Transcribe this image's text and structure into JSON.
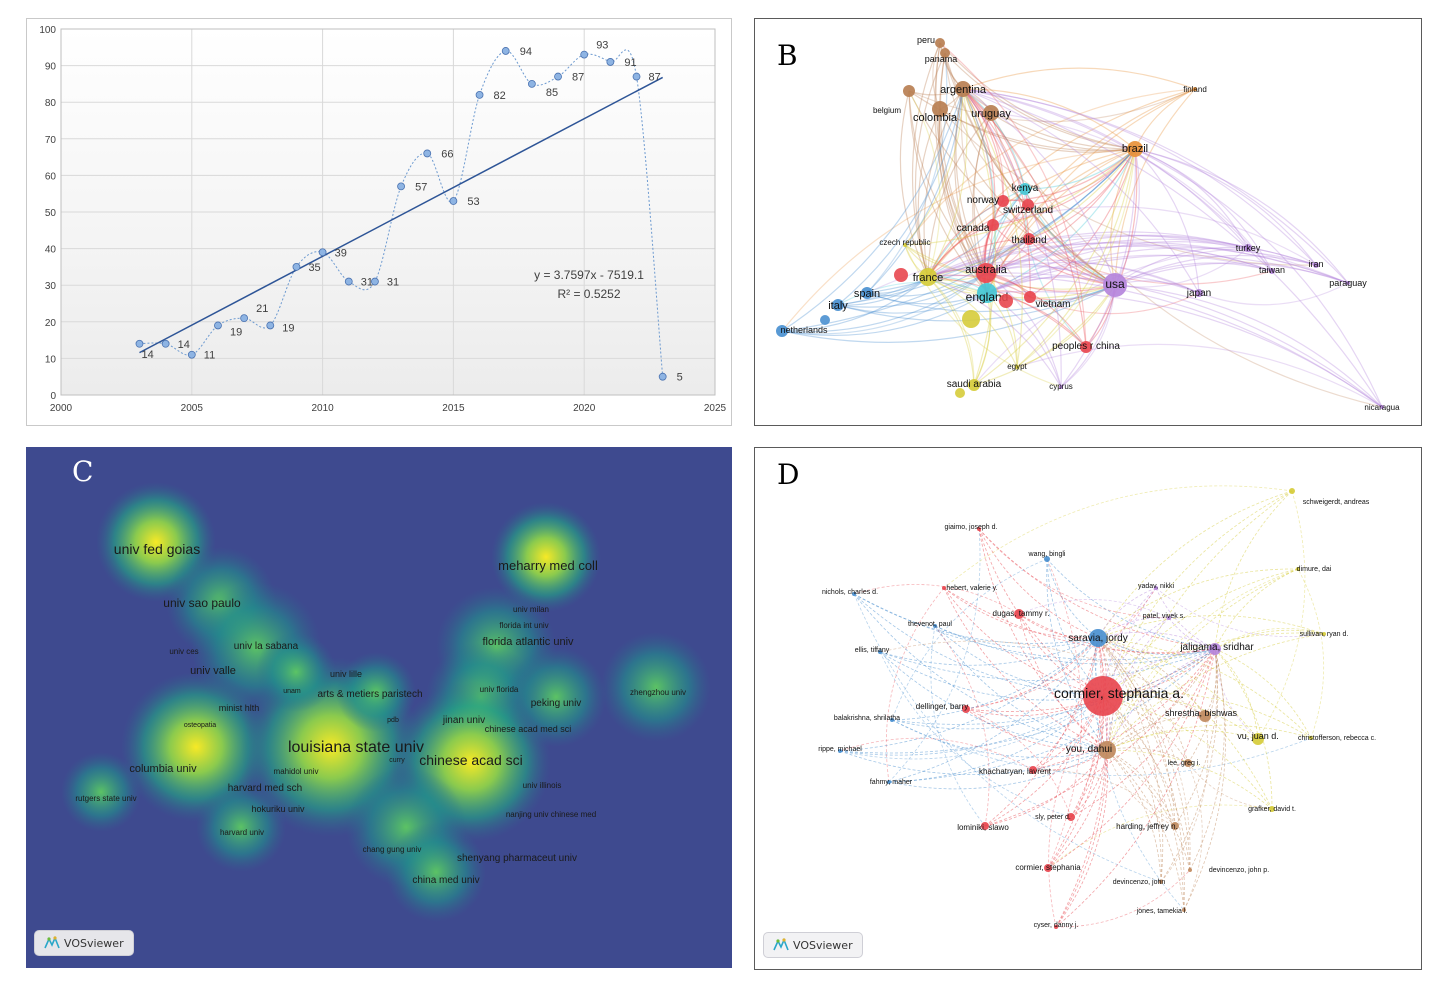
{
  "panels": {
    "a": "A",
    "b": "B",
    "c": "C",
    "d": "D"
  },
  "chart_data": [
    {
      "type": "scatter",
      "panel": "A",
      "x": [
        2003,
        2004,
        2005,
        2006,
        2007,
        2008,
        2009,
        2010,
        2011,
        2012,
        2013,
        2014,
        2015,
        2016,
        2017,
        2018,
        2019,
        2020,
        2021,
        2022,
        2023
      ],
      "values": [
        14,
        14,
        11,
        19,
        21,
        19,
        35,
        39,
        31,
        31,
        57,
        66,
        53,
        82,
        94,
        85,
        87,
        93,
        91,
        87,
        5
      ],
      "data_labels": [
        "14",
        "14",
        "11",
        "19",
        "21",
        "19",
        "35",
        "39",
        "31",
        "31",
        "57",
        "66",
        "53",
        "82",
        "94",
        "85",
        "87",
        "93",
        "91",
        "87",
        "5"
      ],
      "xlim": [
        2000,
        2025
      ],
      "ylim": [
        0,
        100
      ],
      "x_ticks": [
        "2000",
        "2005",
        "2010",
        "2015",
        "2020",
        "2025"
      ],
      "y_ticks": [
        "0",
        "10",
        "20",
        "30",
        "40",
        "50",
        "60",
        "70",
        "80",
        "90",
        "100"
      ],
      "trendline": {
        "slope": 3.7597,
        "intercept": -7519.1,
        "equation": "y = 3.7597x - 7519.1",
        "r2": "R² = 0.5252"
      },
      "point_color": "#8eb4e3",
      "trend_color": "#2e5597",
      "grid": true
    },
    {
      "type": "network",
      "panel": "B",
      "nodes": [
        {
          "label": "peru",
          "cluster": "brown"
        },
        {
          "label": "panama",
          "cluster": "brown"
        },
        {
          "label": "argentina",
          "cluster": "brown"
        },
        {
          "label": "colombia",
          "cluster": "brown"
        },
        {
          "label": "uruguay",
          "cluster": "brown"
        },
        {
          "label": "belgium",
          "cluster": "brown"
        },
        {
          "label": "finland",
          "cluster": "orange"
        },
        {
          "label": "brazil",
          "cluster": "orange"
        },
        {
          "label": "kenya",
          "cluster": "cyan"
        },
        {
          "label": "norway",
          "cluster": "red"
        },
        {
          "label": "switzerland",
          "cluster": "red"
        },
        {
          "label": "canada",
          "cluster": "red"
        },
        {
          "label": "thailand",
          "cluster": "red"
        },
        {
          "label": "czech republic",
          "cluster": "yellow"
        },
        {
          "label": "france",
          "cluster": "yellow"
        },
        {
          "label": "australia",
          "cluster": "red"
        },
        {
          "label": "england",
          "cluster": "cyan"
        },
        {
          "label": "vietnam",
          "cluster": "red"
        },
        {
          "label": "spain",
          "cluster": "blue"
        },
        {
          "label": "italy",
          "cluster": "blue"
        },
        {
          "label": "netherlands",
          "cluster": "blue"
        },
        {
          "label": "usa",
          "cluster": "purple"
        },
        {
          "label": "turkey",
          "cluster": "purple"
        },
        {
          "label": "taiwan",
          "cluster": "purple"
        },
        {
          "label": "iran",
          "cluster": "purple"
        },
        {
          "label": "paraguay",
          "cluster": "purple"
        },
        {
          "label": "japan",
          "cluster": "purple"
        },
        {
          "label": "peoples r china",
          "cluster": "red"
        },
        {
          "label": "egypt",
          "cluster": "yellow"
        },
        {
          "label": "saudi arabia",
          "cluster": "yellow"
        },
        {
          "label": "cyprus",
          "cluster": "purple"
        },
        {
          "label": "nicaragua",
          "cluster": "purple"
        }
      ],
      "cluster_colors": {
        "red": "#e8474f",
        "orange": "#e8913a",
        "brown": "#b97f52",
        "cyan": "#45c8d6",
        "yellow": "#d6cc3a",
        "blue": "#4a90d0",
        "purple": "#b586dc"
      }
    },
    {
      "type": "heatmap",
      "panel": "C",
      "labels": [
        "univ fed goias",
        "meharry med coll",
        "univ sao paulo",
        "univ milan",
        "florida int univ",
        "florida atlantic univ",
        "univ ces",
        "univ la sabana",
        "univ valle",
        "univ lille",
        "unam",
        "arts & metiers paristech",
        "univ florida",
        "peking univ",
        "zhengzhou univ",
        "minist hlth",
        "jinan univ",
        "pdb",
        "chinese acad med sci",
        "osteopatia",
        "louisiana state univ",
        "chinese acad sci",
        "curry",
        "columbia univ",
        "mahidol univ",
        "univ illinois",
        "harvard med sch",
        "rutgers state univ",
        "hokuriku univ",
        "nanjing univ chinese med",
        "harvard univ",
        "chang gung univ",
        "shenyang pharmaceut univ",
        "china med univ"
      ],
      "background_color": "#3e4a8f",
      "hot_color": "#f7e926"
    },
    {
      "type": "network",
      "panel": "D",
      "nodes": [
        {
          "label": "schweigerdt, andreas",
          "cluster": "yellow"
        },
        {
          "label": "giaimo, joseph d.",
          "cluster": "red"
        },
        {
          "label": "wang, bingli",
          "cluster": "blue"
        },
        {
          "label": "hebert, valerie y.",
          "cluster": "red"
        },
        {
          "label": "nichols, charles d.",
          "cluster": "blue"
        },
        {
          "label": "dugas, tammy r.",
          "cluster": "red"
        },
        {
          "label": "yadav, nikki",
          "cluster": "purple"
        },
        {
          "label": "dimure, dai",
          "cluster": "yellow"
        },
        {
          "label": "thevenot, paul",
          "cluster": "blue"
        },
        {
          "label": "saravia, jordy",
          "cluster": "blue"
        },
        {
          "label": "patel, vivek s.",
          "cluster": "purple"
        },
        {
          "label": "sullivan, ryan d.",
          "cluster": "yellow"
        },
        {
          "label": "jaligama, sridhar",
          "cluster": "purple"
        },
        {
          "label": "ellis, tiffany",
          "cluster": "blue"
        },
        {
          "label": "cormier, stephania a.",
          "cluster": "red"
        },
        {
          "label": "dellinger, barry",
          "cluster": "red"
        },
        {
          "label": "shrestha, bishwas",
          "cluster": "brown"
        },
        {
          "label": "balakrishna, shrilatha",
          "cluster": "blue"
        },
        {
          "label": "you, dahui",
          "cluster": "brown"
        },
        {
          "label": "vu, juan d.",
          "cluster": "yellow"
        },
        {
          "label": "christofferson, rebecca c.",
          "cluster": "yellow"
        },
        {
          "label": "rippe, michael",
          "cluster": "blue"
        },
        {
          "label": "khachatryan, lavrent",
          "cluster": "red"
        },
        {
          "label": "lee, greg i.",
          "cluster": "brown"
        },
        {
          "label": "fahmy, maher",
          "cluster": "blue"
        },
        {
          "label": "lominiki, slawo",
          "cluster": "red"
        },
        {
          "label": "sly, peter d.",
          "cluster": "red"
        },
        {
          "label": "harding, jeffrey n.",
          "cluster": "brown"
        },
        {
          "label": "grafker, david t.",
          "cluster": "yellow"
        },
        {
          "label": "cormier, stephania",
          "cluster": "red"
        },
        {
          "label": "devincenzo, john p.",
          "cluster": "brown"
        },
        {
          "label": "devincenzo, john",
          "cluster": "brown"
        },
        {
          "label": "jones, tamekia l.",
          "cluster": "brown"
        },
        {
          "label": "cyser, danny j.",
          "cluster": "red"
        }
      ],
      "cluster_colors": {
        "red": "#e8474f",
        "blue": "#4a90d0",
        "purple": "#b586dc",
        "yellow": "#d6cc3a",
        "brown": "#c08a5e"
      }
    }
  ],
  "vosviewer": {
    "c": "VOSviewer",
    "d": "VOSviewer"
  }
}
